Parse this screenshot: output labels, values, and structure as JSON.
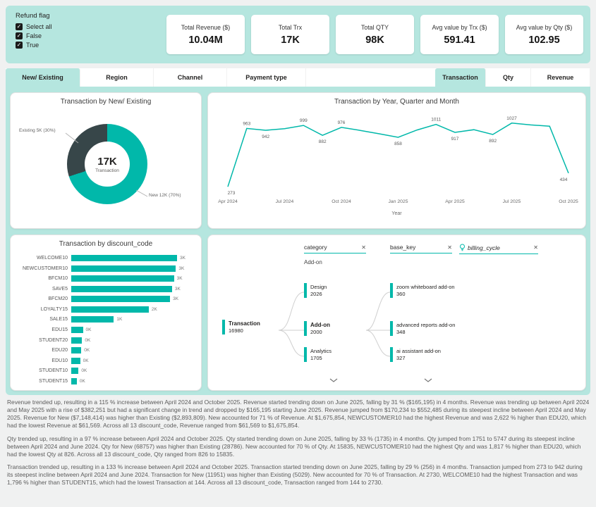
{
  "colors": {
    "accent": "#01b8aa",
    "panel_teal": "#b5e6df",
    "dark_slice": "#374649"
  },
  "icons": {
    "checkmark": "✓",
    "close": "✕",
    "lightbulb": "lightbulb-icon",
    "chevron_down": "chevron-down-icon"
  },
  "filters": {
    "title": "Refund flag",
    "options": [
      {
        "label": "Select all",
        "checked": true
      },
      {
        "label": "False",
        "checked": true
      },
      {
        "label": "True",
        "checked": true
      }
    ]
  },
  "kpis": [
    {
      "title": "Total Revenue ($)",
      "value": "10.04M"
    },
    {
      "title": "Total Trx",
      "value": "17K"
    },
    {
      "title": "Total QTY",
      "value": "98K"
    },
    {
      "title": "Avg value by Trx ($)",
      "value": "591.41"
    },
    {
      "title": "Avg value by Qty ($)",
      "value": "102.95"
    }
  ],
  "tabs": {
    "left": [
      {
        "label": "New/ Existing",
        "active": true
      },
      {
        "label": "Region",
        "active": false
      },
      {
        "label": "Channel",
        "active": false
      },
      {
        "label": "Payment type",
        "active": false
      }
    ],
    "right": [
      {
        "label": "Transaction",
        "active": true
      },
      {
        "label": "Qty",
        "active": false
      },
      {
        "label": "Revenue",
        "active": false
      }
    ]
  },
  "chart_data": [
    {
      "type": "pie",
      "title": "Transaction by New/ Existing",
      "center_value": "17K",
      "center_label": "Transaction",
      "slices": [
        {
          "name": "New",
          "label": "New 12K (70%)",
          "value": 12000,
          "pct": 70,
          "color": "#01b8aa"
        },
        {
          "name": "Existing",
          "label": "Existing 5K (30%)",
          "value": 5000,
          "pct": 30,
          "color": "#374649"
        }
      ]
    },
    {
      "type": "line",
      "title": "Transaction by Year, Quarter and Month",
      "xlabel": "Year",
      "line_color": "#01b8aa",
      "ylim": [
        200,
        1100
      ],
      "x_ticks": [
        "Apr 2024",
        "Jul 2024",
        "Oct 2024",
        "Jan 2025",
        "Apr 2025",
        "Jul 2025",
        "Oct 2025"
      ],
      "points": [
        {
          "month": "Apr 2024",
          "value": 273,
          "label": "273",
          "label_pos": "below"
        },
        {
          "month": "May 2024",
          "value": 963,
          "label": "963",
          "label_pos": "above"
        },
        {
          "month": "Jun 2024",
          "value": 942,
          "label": "942",
          "label_pos": "below"
        },
        {
          "month": "Jul 2024",
          "value": 960
        },
        {
          "month": "Aug 2024",
          "value": 999,
          "label": "999",
          "label_pos": "above"
        },
        {
          "month": "Sep 2024",
          "value": 882,
          "label": "882",
          "label_pos": "below"
        },
        {
          "month": "Oct 2024",
          "value": 976,
          "label": "976",
          "label_pos": "above"
        },
        {
          "month": "Nov 2024",
          "value": 940
        },
        {
          "month": "Dec 2024",
          "value": 900
        },
        {
          "month": "Jan 2025",
          "value": 858,
          "label": "858",
          "label_pos": "below"
        },
        {
          "month": "Feb 2025",
          "value": 945
        },
        {
          "month": "Mar 2025",
          "value": 1011,
          "label": "1011",
          "label_pos": "above"
        },
        {
          "month": "Apr 2025",
          "value": 917,
          "label": "917",
          "label_pos": "below"
        },
        {
          "month": "May 2025",
          "value": 948
        },
        {
          "month": "Jun 2025",
          "value": 892,
          "label": "892",
          "label_pos": "below"
        },
        {
          "month": "Jul 2025",
          "value": 1027,
          "label": "1027",
          "label_pos": "above"
        },
        {
          "month": "Aug 2025",
          "value": 1005
        },
        {
          "month": "Sep 2025",
          "value": 990
        },
        {
          "month": "Oct 2025",
          "value": 434,
          "label": "434",
          "label_pos": "below"
        }
      ]
    },
    {
      "type": "bar",
      "title": "Transaction by discount_code",
      "orientation": "horizontal",
      "bar_color": "#01b8aa",
      "categories": [
        "WELCOME10",
        "NEWCUSTOMER10",
        "BFCM10",
        "SAVE5",
        "BFCM20",
        "LOYALTY15",
        "SALE15",
        "EDU15",
        "STUDENT20",
        "EDU20",
        "EDU10",
        "STUDENT10",
        "STUDENT15"
      ],
      "values": [
        2730,
        2700,
        2650,
        2600,
        2550,
        2000,
        1100,
        300,
        280,
        260,
        230,
        190,
        144
      ],
      "value_labels": [
        "3K",
        "3K",
        "3K",
        "3K",
        "3K",
        "2K",
        "1K",
        "0K",
        "0K",
        "0K",
        "0K",
        "0K",
        "0K"
      ]
    }
  ],
  "decomposition_tree": {
    "levels": [
      {
        "name": "category"
      },
      {
        "name": "base_key"
      },
      {
        "name": "billing_cycle",
        "suggested": true
      }
    ],
    "level_caption": "Add-on",
    "root": {
      "label": "Transaction",
      "value": "16980"
    },
    "level1_nodes": [
      {
        "label": "Design",
        "value": "2026",
        "selected": false
      },
      {
        "label": "Add-on",
        "value": "2000",
        "selected": true
      },
      {
        "label": "Analytics",
        "value": "1705",
        "selected": false
      }
    ],
    "level2_nodes": [
      {
        "label": "zoom whiteboard add-on",
        "value": "360"
      },
      {
        "label": "advanced reports add-on",
        "value": "348"
      },
      {
        "label": "ai assistant add-on",
        "value": "327"
      }
    ]
  },
  "narrative": {
    "paragraphs": [
      "Revenue trended up, resulting in a 115 % increase between April 2024 and October 2025. Revenue started trending down on June 2025, falling by 31 % ($165,195) in 4 months. Revenue was trending up between April 2024 and May 2025 with a rise of $382,251 but had a significant change in trend and dropped by $165,195 starting June 2025. Revenue jumped from $170,234 to $552,485 during its steepest incline between April 2024 and May 2025. Revenue for New ($7,148,414) was higher than Existing ($2,893,809). New accounted for 71 % of Revenue. At $1,675,854, NEWCUSTOMER10 had the highest Revenue and was 2,622 % higher than EDU20, which had the lowest Revenue at $61,569. Across all 13 discount_code, Revenue ranged from $61,569 to $1,675,854.",
      "Qty trended up, resulting in a 97 % increase between April 2024 and October 2025. Qty started trending down on June 2025, falling by 33 % (1735) in 4 months. Qty jumped from 1751 to 5747 during its steepest incline between April 2024 and June 2024. Qty for New (68757) was higher than Existing (28786). New accounted for 70 % of Qty. At 15835, NEWCUSTOMER10 had the highest Qty and was 1,817 % higher than EDU20, which had the lowest Qty at 826. Across all 13 discount_code, Qty ranged from 826 to 15835.",
      "Transaction trended up, resulting in a 133 % increase between April 2024 and October 2025. Transaction started trending down on June 2025, falling by 29 % (256) in 4 months. Transaction jumped from 273 to 942 during its steepest incline between April 2024 and June 2024. Transaction for New (11951) was higher than Existing (5029). New accounted for 70 % of Transaction. At 2730, WELCOME10 had the highest Transaction and was 1,796 % higher than STUDENT15, which had the lowest Transaction at 144. Across all 13 discount_code, Transaction ranged from 144 to 2730."
    ]
  }
}
